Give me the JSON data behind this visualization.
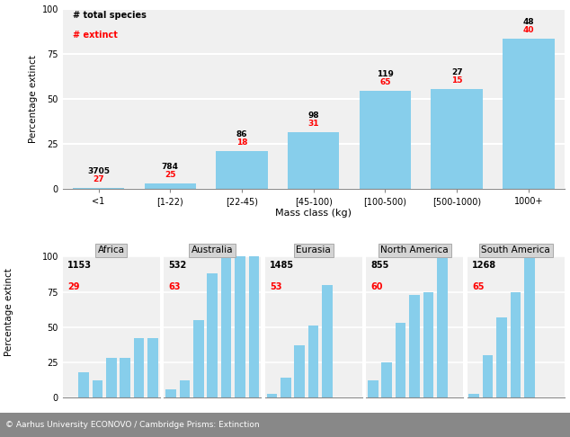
{
  "top_categories": [
    "<1",
    "[1-22)",
    "[22-45)",
    "[45-100)",
    "[100-500)",
    "[500-1000)",
    "1000+"
  ],
  "top_total": [
    3705,
    784,
    86,
    98,
    119,
    27,
    48
  ],
  "top_extinct": [
    27,
    25,
    18,
    31,
    65,
    15,
    40
  ],
  "top_pct_extinct": [
    0.73,
    3.19,
    20.93,
    31.63,
    54.62,
    55.56,
    83.33
  ],
  "bar_color": "#87CEEB",
  "bg_color": "#f0f0f0",
  "grid_color": "white",
  "top_xlabel": "Mass class (kg)",
  "top_ylabel": "Percentage extinct",
  "legend_total": "# total species",
  "legend_extinct": "# extinct",
  "continents": [
    "Africa",
    "Australia",
    "Eurasia",
    "North America",
    "South America"
  ],
  "cont_total": [
    1153,
    532,
    1485,
    855,
    1268
  ],
  "cont_extinct": [
    29,
    63,
    53,
    60,
    65
  ],
  "africa_bars": [
    0,
    18,
    12,
    28,
    28,
    42,
    42
  ],
  "australia_bars": [
    6,
    12,
    55,
    88,
    100,
    100,
    100
  ],
  "eurasia_bars": [
    3,
    14,
    37,
    51,
    80,
    0,
    0
  ],
  "namerica_bars": [
    12,
    25,
    53,
    73,
    75,
    100,
    0
  ],
  "samerica_bars": [
    3,
    30,
    57,
    75,
    100,
    0,
    0
  ],
  "footer_text": "© Aarhus University ECONOVO / Cambridge Prisms: Extinction",
  "footer_bg": "#888888",
  "footer_color": "white"
}
